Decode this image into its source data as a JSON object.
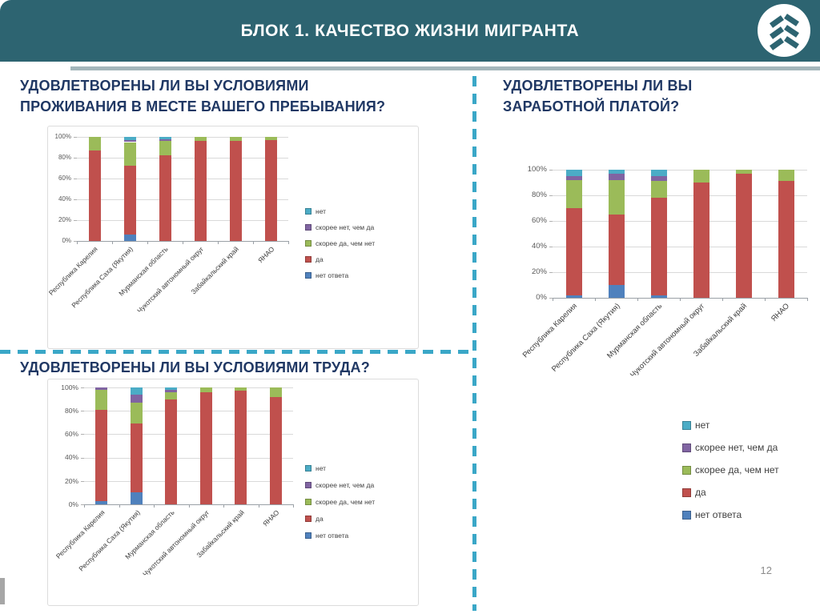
{
  "header": {
    "title": "БЛОК 1. КАЧЕСТВО ЖИЗНИ МИГРАНТА",
    "background_color": "#2d6471",
    "logo_icon": "fir-tree-chevrons"
  },
  "page_number": "12",
  "accent": {
    "divider_dash_color": "#3aa7c7",
    "question_title_color": "#203864"
  },
  "chart_data": [
    {
      "type": "bar",
      "subtype": "stacked-100",
      "title": "УДОВЛЕТВОРЕНЫ ЛИ ВЫ УСЛОВИЯМИ\nПРОЖИВАНИЯ В МЕСТЕ ВАШЕГО ПРЕБЫВАНИЯ?",
      "categories": [
        "Республика Карелия",
        "Республика Саха (Якутия)",
        "Мурманская область",
        "Чукотский автономный округ",
        "Забайкальский край",
        "ЯНАО"
      ],
      "y_ticks": [
        "0%",
        "20%",
        "40%",
        "60%",
        "80%",
        "100%"
      ],
      "ylim": [
        0,
        100
      ],
      "grid": true,
      "legend_position": "right",
      "series": [
        {
          "name": "нет ответа",
          "color": "#4F81BD",
          "values": [
            0,
            6,
            0,
            0,
            0,
            0
          ]
        },
        {
          "name": "да",
          "color": "#C0504D",
          "values": [
            87,
            66,
            82,
            96,
            96,
            97
          ]
        },
        {
          "name": "скорее да, чем нет",
          "color": "#9BBB59",
          "values": [
            13,
            23,
            14,
            4,
            4,
            3
          ]
        },
        {
          "name": "скорее нет, чем да",
          "color": "#8064A2",
          "values": [
            0,
            2,
            2,
            0,
            0,
            0
          ]
        },
        {
          "name": "нет",
          "color": "#4BACC6",
          "values": [
            0,
            3,
            2,
            0,
            0,
            0
          ]
        }
      ]
    },
    {
      "type": "bar",
      "subtype": "stacked-100",
      "title": "УДОВЛЕТВОРЕНЫ ЛИ ВЫ УСЛОВИЯМИ ТРУДА?",
      "categories": [
        "Республика Карелия",
        "Республика Саха (Якутия)",
        "Мурманская область",
        "Чукотский автономный округ",
        "Забайкальский край",
        "ЯНАО"
      ],
      "y_ticks": [
        "0%",
        "20%",
        "40%",
        "60%",
        "80%",
        "100%"
      ],
      "ylim": [
        0,
        100
      ],
      "grid": true,
      "legend_position": "right",
      "series": [
        {
          "name": "нет ответа",
          "color": "#4F81BD",
          "values": [
            3,
            10,
            0,
            0,
            0,
            0
          ]
        },
        {
          "name": "да",
          "color": "#C0504D",
          "values": [
            78,
            59,
            90,
            96,
            97,
            92
          ]
        },
        {
          "name": "скорее да, чем нет",
          "color": "#9BBB59",
          "values": [
            17,
            18,
            6,
            4,
            3,
            8
          ]
        },
        {
          "name": "скорее нет, чем да",
          "color": "#8064A2",
          "values": [
            2,
            7,
            2,
            0,
            0,
            0
          ]
        },
        {
          "name": "нет",
          "color": "#4BACC6",
          "values": [
            0,
            6,
            2,
            0,
            0,
            0
          ]
        }
      ]
    },
    {
      "type": "bar",
      "subtype": "stacked-100",
      "title": "УДОВЛЕТВОРЕНЫ ЛИ ВЫ\nЗАРАБОТНОЙ ПЛАТОЙ?",
      "categories": [
        "Республика Карелия",
        "Республика Саха (Якутия)",
        "Мурманская область",
        "Чукотский автономный округ",
        "Забайкальский край",
        "ЯНАО"
      ],
      "y_ticks": [
        "0%",
        "20%",
        "40%",
        "60%",
        "80%",
        "100%"
      ],
      "ylim": [
        0,
        100
      ],
      "grid": true,
      "legend_position": "bottom-right",
      "series": [
        {
          "name": "нет ответа",
          "color": "#4F81BD",
          "values": [
            2,
            10,
            2,
            0,
            0,
            0
          ]
        },
        {
          "name": "да",
          "color": "#C0504D",
          "values": [
            68,
            55,
            76,
            90,
            97,
            91
          ]
        },
        {
          "name": "скорее да, чем нет",
          "color": "#9BBB59",
          "values": [
            22,
            27,
            13,
            10,
            3,
            9
          ]
        },
        {
          "name": "скорее нет, чем да",
          "color": "#8064A2",
          "values": [
            3,
            5,
            4,
            0,
            0,
            0
          ]
        },
        {
          "name": "нет",
          "color": "#4BACC6",
          "values": [
            5,
            3,
            5,
            0,
            0,
            0
          ]
        }
      ]
    }
  ]
}
